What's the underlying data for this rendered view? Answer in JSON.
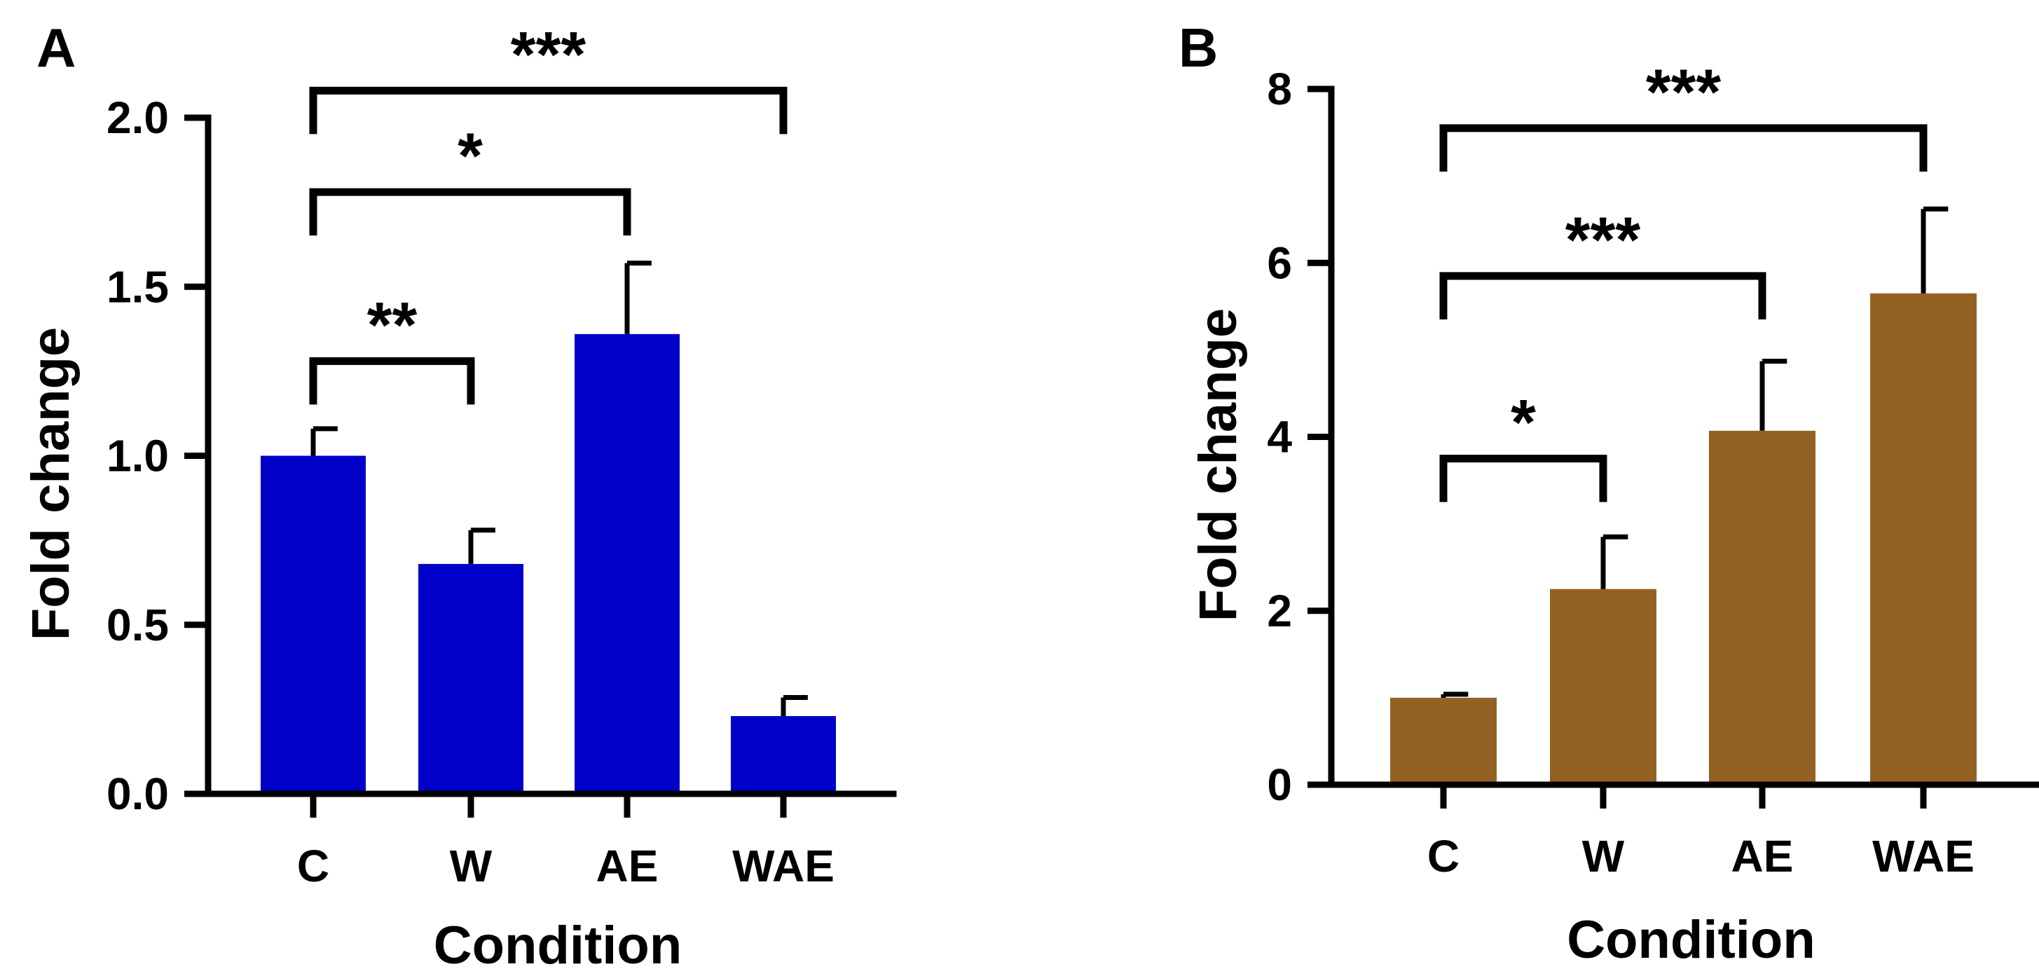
{
  "chart_data": [
    {
      "panel": "A",
      "type": "bar",
      "categories": [
        "C",
        "W",
        "AE",
        "WAE"
      ],
      "values": [
        1.0,
        0.68,
        1.36,
        0.23
      ],
      "errors": [
        0.08,
        0.1,
        0.21,
        0.055
      ],
      "bar_color": "#0000C8",
      "xlabel": "Condition",
      "ylabel": "Fold change",
      "ylim": [
        0,
        2.0
      ],
      "yticks": [
        "0.0",
        "0.5",
        "1.0",
        "1.5",
        "2.0"
      ],
      "tick_values": [
        0,
        0.5,
        1.0,
        1.5,
        2.0
      ],
      "significance": [
        {
          "from": "C",
          "to": "W",
          "label": "**",
          "level": 1.28
        },
        {
          "from": "C",
          "to": "AE",
          "label": "*",
          "level": 1.78
        },
        {
          "from": "C",
          "to": "WAE",
          "label": "***",
          "level": 2.08
        }
      ]
    },
    {
      "panel": "B",
      "type": "bar",
      "categories": [
        "C",
        "W",
        "AE",
        "WAE"
      ],
      "values": [
        1.0,
        2.25,
        4.07,
        5.65
      ],
      "errors": [
        0.04,
        0.6,
        0.8,
        0.97
      ],
      "bar_color": "#936222",
      "xlabel": "Condition",
      "ylabel": "Fold change",
      "ylim": [
        0,
        8
      ],
      "yticks": [
        "0",
        "2",
        "4",
        "6",
        "8"
      ],
      "tick_values": [
        0,
        2,
        4,
        6,
        8
      ],
      "significance": [
        {
          "from": "C",
          "to": "W",
          "label": "*",
          "level": 3.75
        },
        {
          "from": "C",
          "to": "AE",
          "label": "***",
          "level": 5.85
        },
        {
          "from": "C",
          "to": "WAE",
          "label": "***",
          "level": 7.55
        }
      ]
    }
  ]
}
